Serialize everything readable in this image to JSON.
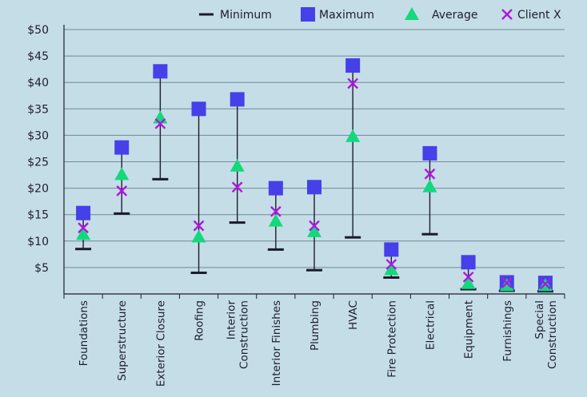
{
  "chart_data": {
    "type": "scatter",
    "title": "",
    "xlabel": "",
    "ylabel": "",
    "ylim": [
      0,
      50
    ],
    "y_ticks": [
      "$5",
      "$10",
      "$15",
      "$20",
      "$25",
      "$30",
      "$35",
      "$40",
      "$45",
      "$50"
    ],
    "grid": true,
    "legend_position": "top-right",
    "categories": [
      [
        "Foundations"
      ],
      [
        "Superstructure"
      ],
      [
        "Exterior Closure"
      ],
      [
        "Roofing"
      ],
      [
        "Interior",
        "Construction"
      ],
      [
        "Interior Finishes"
      ],
      [
        "Plumbing"
      ],
      [
        "HVAC"
      ],
      [
        "Fire Protection"
      ],
      [
        "Electrical"
      ],
      [
        "Equipment"
      ],
      [
        "Furnishings"
      ],
      [
        "Special",
        "Construction"
      ]
    ],
    "series": [
      {
        "name": "Minimum",
        "marker": "dash",
        "color": "#1a1a2e",
        "values": [
          8.5,
          15.2,
          21.7,
          4.0,
          13.5,
          8.4,
          4.5,
          10.7,
          3.1,
          11.3,
          0.9,
          0.6,
          0.5
        ]
      },
      {
        "name": "Maximum",
        "marker": "square",
        "color": "#4640e8",
        "values": [
          15.3,
          27.7,
          42.1,
          35.0,
          36.8,
          20.0,
          20.2,
          43.2,
          8.4,
          26.6,
          6.0,
          2.2,
          2.1
        ]
      },
      {
        "name": "Average",
        "marker": "triangle",
        "color": "#12d97c",
        "values": [
          11.3,
          22.6,
          33.3,
          10.8,
          24.2,
          13.8,
          11.8,
          29.8,
          4.6,
          20.3,
          2.0,
          1.6,
          1.6
        ]
      },
      {
        "name": "Client X",
        "marker": "x",
        "color": "#b016e0",
        "values": [
          12.5,
          19.5,
          32.2,
          12.9,
          20.2,
          15.6,
          12.9,
          39.8,
          5.6,
          22.7,
          3.2,
          2.1,
          1.9
        ]
      }
    ]
  }
}
